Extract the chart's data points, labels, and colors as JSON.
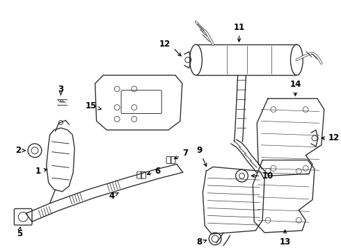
{
  "bg_color": "#ffffff",
  "line_color": "#303030",
  "label_color": "#000000",
  "figsize": [
    4.9,
    3.6
  ],
  "dpi": 100
}
